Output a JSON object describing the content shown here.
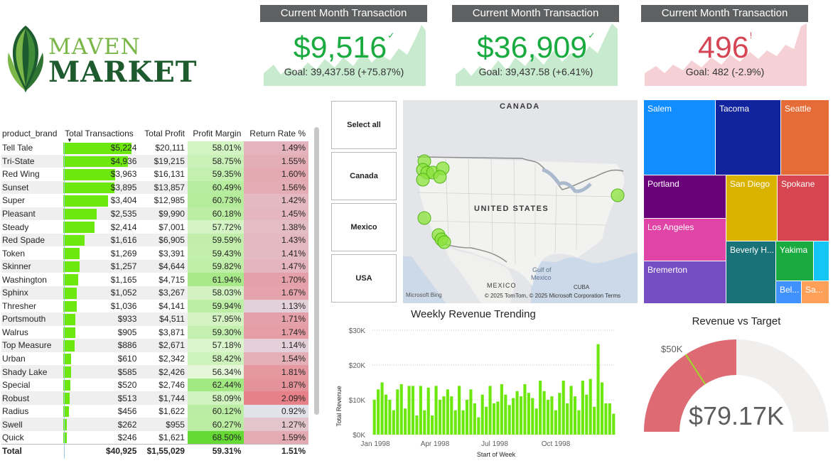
{
  "logo": {
    "line1": "MAVEN",
    "line2": "MARKET"
  },
  "kpis": [
    {
      "title": "Current Month Transaction",
      "value": "$9,516",
      "flag": "✓",
      "goal": "Goal: 39,437.58 (+75.87%)",
      "color": "#1aab40",
      "spark_color": "#c8ebcf"
    },
    {
      "title": "Current Month Transaction",
      "value": "$36,909",
      "flag": "✓",
      "goal": "Goal: 39,437.58 (+6.41%)",
      "color": "#1aab40",
      "spark_color": "#c8ebcf"
    },
    {
      "title": "Current Month Transaction",
      "value": "496",
      "flag": "!",
      "goal": "Goal: 482 (-2.9%)",
      "color": "#d64554",
      "spark_color": "#f5d0d4"
    }
  ],
  "table": {
    "headers": [
      "product_brand",
      "Total Transactions",
      "Total Profit",
      "Profit Margin",
      "Return Rate %"
    ],
    "rows": [
      {
        "brand": "Tell Tale",
        "tx": "$5,224",
        "tx_val": 5224,
        "profit": "$20,111",
        "margin": "58.01%",
        "rr": "1.49%"
      },
      {
        "brand": "Tri-State",
        "tx": "$4,936",
        "tx_val": 4936,
        "profit": "$19,215",
        "margin": "58.75%",
        "rr": "1.55%"
      },
      {
        "brand": "Red Wing",
        "tx": "$3,963",
        "tx_val": 3963,
        "profit": "$16,131",
        "margin": "59.35%",
        "rr": "1.60%"
      },
      {
        "brand": "Sunset",
        "tx": "$3,895",
        "tx_val": 3895,
        "profit": "$13,857",
        "margin": "60.49%",
        "rr": "1.56%"
      },
      {
        "brand": "Super",
        "tx": "$3,404",
        "tx_val": 3404,
        "profit": "$12,985",
        "margin": "60.73%",
        "rr": "1.42%"
      },
      {
        "brand": "Pleasant",
        "tx": "$2,535",
        "tx_val": 2535,
        "profit": "$9,990",
        "margin": "60.18%",
        "rr": "1.45%"
      },
      {
        "brand": "Steady",
        "tx": "$2,414",
        "tx_val": 2414,
        "profit": "$7,001",
        "margin": "57.72%",
        "rr": "1.38%"
      },
      {
        "brand": "Red Spade",
        "tx": "$1,616",
        "tx_val": 1616,
        "profit": "$6,905",
        "margin": "59.59%",
        "rr": "1.43%"
      },
      {
        "brand": "Token",
        "tx": "$1,269",
        "tx_val": 1269,
        "profit": "$3,391",
        "margin": "59.43%",
        "rr": "1.41%"
      },
      {
        "brand": "Skinner",
        "tx": "$1,257",
        "tx_val": 1257,
        "profit": "$4,644",
        "margin": "59.82%",
        "rr": "1.47%"
      },
      {
        "brand": "Washington",
        "tx": "$1,165",
        "tx_val": 1165,
        "profit": "$4,715",
        "margin": "61.94%",
        "rr": "1.70%"
      },
      {
        "brand": "Sphinx",
        "tx": "$1,052",
        "tx_val": 1052,
        "profit": "$3,267",
        "margin": "58.03%",
        "rr": "1.67%"
      },
      {
        "brand": "Thresher",
        "tx": "$1,036",
        "tx_val": 1036,
        "profit": "$4,141",
        "margin": "59.94%",
        "rr": "1.13%"
      },
      {
        "brand": "Portsmouth",
        "tx": "$933",
        "tx_val": 933,
        "profit": "$4,511",
        "margin": "57.95%",
        "rr": "1.71%"
      },
      {
        "brand": "Walrus",
        "tx": "$905",
        "tx_val": 905,
        "profit": "$3,871",
        "margin": "59.30%",
        "rr": "1.74%"
      },
      {
        "brand": "Top Measure",
        "tx": "$886",
        "tx_val": 886,
        "profit": "$2,671",
        "margin": "57.18%",
        "rr": "1.14%"
      },
      {
        "brand": "Urban",
        "tx": "$610",
        "tx_val": 610,
        "profit": "$2,342",
        "margin": "58.42%",
        "rr": "1.54%"
      },
      {
        "brand": "Shady Lake",
        "tx": "$585",
        "tx_val": 585,
        "profit": "$2,426",
        "margin": "56.34%",
        "rr": "1.81%"
      },
      {
        "brand": "Special",
        "tx": "$520",
        "tx_val": 520,
        "profit": "$2,746",
        "margin": "62.44%",
        "rr": "1.87%"
      },
      {
        "brand": "Robust",
        "tx": "$513",
        "tx_val": 513,
        "profit": "$1,744",
        "margin": "58.09%",
        "rr": "2.09%"
      },
      {
        "brand": "Radius",
        "tx": "$456",
        "tx_val": 456,
        "profit": "$1,622",
        "margin": "60.12%",
        "rr": "0.92%"
      },
      {
        "brand": "Swell",
        "tx": "$262",
        "tx_val": 262,
        "profit": "$955",
        "margin": "60.27%",
        "rr": "1.27%"
      },
      {
        "brand": "Quick",
        "tx": "$246",
        "tx_val": 246,
        "profit": "$1,621",
        "margin": "68.50%",
        "rr": "1.59%"
      }
    ],
    "total": {
      "brand": "Total",
      "tx": "$40,925",
      "profit": "$1,55,029",
      "margin": "59.31%",
      "rr": "1.51%"
    }
  },
  "slicer": [
    "Select all",
    "Canada",
    "Mexico",
    "USA"
  ],
  "map": {
    "labels": {
      "canada": "CANADA",
      "us": "UNITED STATES",
      "mexico": "MEXICO",
      "gulf1": "Gulf of",
      "gulf2": "Mexico",
      "cuba": "CUBA"
    },
    "credits": "© 2025 TomTom, © 2025 Microsoft Corporation  Terms",
    "bing": "Microsoft Bing"
  },
  "treemap": [
    {
      "name": "Salem",
      "color": "#118dff"
    },
    {
      "name": "Tacoma",
      "color": "#12239e"
    },
    {
      "name": "Seattle",
      "color": "#e66c37"
    },
    {
      "name": "Portland",
      "color": "#6b007b"
    },
    {
      "name": "San Diego",
      "color": "#d9b300"
    },
    {
      "name": "Spokane",
      "color": "#d64550"
    },
    {
      "name": "Los Angeles",
      "color": "#e044a7"
    },
    {
      "name": "Bremerton",
      "color": "#744ec2"
    },
    {
      "name": "Beverly H...",
      "color": "#197278"
    },
    {
      "name": "Yakima",
      "color": "#1aab40"
    },
    {
      "name": "",
      "color": "#15c6f4"
    },
    {
      "name": "Bel...",
      "color": "#4092ff"
    },
    {
      "name": "Sa...",
      "color": "#ffa058"
    }
  ],
  "weekly": {
    "title": "Weekly Revenue Trending",
    "ylabel": "Total Revenue",
    "xlabel": "Start of Week",
    "yticks": [
      "$0K",
      "$10K",
      "$20K",
      "$30K"
    ],
    "xticks": [
      "Jan 1998",
      "Apr 1998",
      "Jul 1998",
      "Oct 1998"
    ]
  },
  "chart_data": {
    "type": "bar",
    "title": "Weekly Revenue Trending",
    "xlabel": "Start of Week",
    "ylabel": "Total Revenue",
    "ylim": [
      0,
      30000
    ],
    "x_start": "Jan 1998",
    "values": [
      10000,
      13000,
      15000,
      11500,
      10000,
      7000,
      13000,
      14500,
      7500,
      14000,
      14000,
      5500,
      14000,
      7000,
      13500,
      5500,
      14000,
      10000,
      11000,
      13000,
      11000,
      7000,
      14000,
      7000,
      10000,
      13000,
      9000,
      5000,
      11500,
      8000,
      14000,
      9000,
      9500,
      14500,
      11500,
      8500,
      10500,
      12500,
      11000,
      14500,
      12000,
      10500,
      7500,
      15500,
      12500,
      10000,
      11000,
      7000,
      12000,
      15500,
      9000,
      14000,
      11000,
      7000,
      15500,
      11500,
      16000,
      8000,
      26000,
      15000,
      9000,
      9000,
      6000
    ],
    "color": "#6ce80f"
  },
  "gauge": {
    "title": "Revenue vs Target",
    "value_label": "$79.17K",
    "target_label": "$50K",
    "value": 79170,
    "target": 50000,
    "max": 158340,
    "fill_color": "#de6a73",
    "track_color": "#f0efee",
    "target_color": "#9ddb2a"
  }
}
